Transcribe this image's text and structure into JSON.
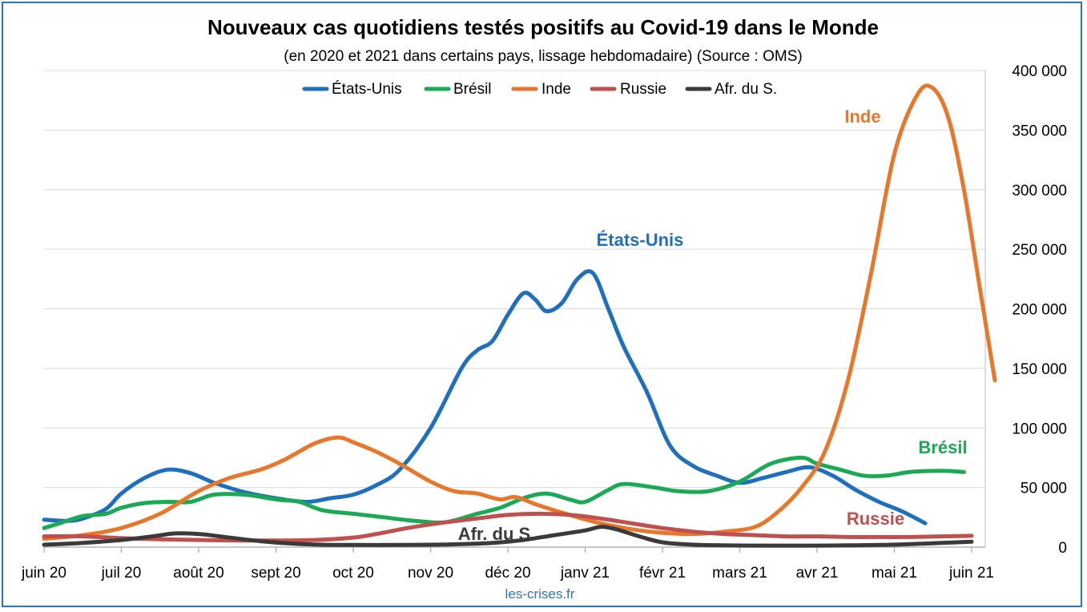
{
  "chart_data": {
    "type": "line",
    "title": "Nouveaux cas quotidiens testés positifs au Covid-19 dans le Monde",
    "subtitle": "(en 2020 et 2021 dans certains pays, lissage hebdomadaire) (Source : OMS)",
    "source_note": "les-crises.fr",
    "x_tick_labels": [
      "juin 20",
      "juil 20",
      "août 20",
      "sept 20",
      "oct 20",
      "nov 20",
      "déc 20",
      "janv 21",
      "févr 21",
      "mars 21",
      "avr 21",
      "mai 21",
      "juin 21"
    ],
    "y_tick_labels": [
      "0",
      "50 000",
      "100 000",
      "150 000",
      "200 000",
      "250 000",
      "300 000",
      "350 000",
      "400 000"
    ],
    "ylim": [
      0,
      400000
    ],
    "y_axis_side": "right",
    "grid": true,
    "legend_position": "top",
    "series": [
      {
        "name": "États-Unis",
        "label": "États-Unis",
        "color": "#1f6fbf",
        "points": [
          [
            0,
            23000
          ],
          [
            0.3,
            22000
          ],
          [
            0.5,
            24000
          ],
          [
            0.8,
            32000
          ],
          [
            1.0,
            45000
          ],
          [
            1.3,
            58000
          ],
          [
            1.6,
            65000
          ],
          [
            1.9,
            62000
          ],
          [
            2.2,
            54000
          ],
          [
            2.6,
            46000
          ],
          [
            3.0,
            41000
          ],
          [
            3.4,
            38000
          ],
          [
            3.7,
            41000
          ],
          [
            4.0,
            44000
          ],
          [
            4.3,
            52000
          ],
          [
            4.6,
            65000
          ],
          [
            5.0,
            100000
          ],
          [
            5.4,
            150000
          ],
          [
            5.6,
            165000
          ],
          [
            5.8,
            173000
          ],
          [
            6.0,
            195000
          ],
          [
            6.2,
            213000
          ],
          [
            6.35,
            208000
          ],
          [
            6.5,
            198000
          ],
          [
            6.7,
            205000
          ],
          [
            6.9,
            225000
          ],
          [
            7.1,
            230000
          ],
          [
            7.3,
            200000
          ],
          [
            7.5,
            168000
          ],
          [
            7.8,
            130000
          ],
          [
            8.1,
            85000
          ],
          [
            8.4,
            68000
          ],
          [
            8.7,
            60000
          ],
          [
            9.0,
            54000
          ],
          [
            9.3,
            58000
          ],
          [
            9.6,
            63000
          ],
          [
            9.9,
            67000
          ],
          [
            10.2,
            60000
          ],
          [
            10.5,
            48000
          ],
          [
            10.8,
            38000
          ],
          [
            11.1,
            30000
          ],
          [
            11.4,
            20000
          ]
        ]
      },
      {
        "name": "Brésil",
        "label": "Brésil",
        "color": "#1aa955",
        "points": [
          [
            0,
            16000
          ],
          [
            0.2,
            20000
          ],
          [
            0.5,
            26000
          ],
          [
            0.8,
            28000
          ],
          [
            1.0,
            33000
          ],
          [
            1.3,
            37000
          ],
          [
            1.6,
            38000
          ],
          [
            1.9,
            38000
          ],
          [
            2.2,
            44000
          ],
          [
            2.6,
            44000
          ],
          [
            3.0,
            40000
          ],
          [
            3.3,
            38000
          ],
          [
            3.6,
            31000
          ],
          [
            4.0,
            28000
          ],
          [
            4.4,
            25000
          ],
          [
            4.8,
            22000
          ],
          [
            5.2,
            21000
          ],
          [
            5.6,
            28000
          ],
          [
            5.9,
            33000
          ],
          [
            6.2,
            41000
          ],
          [
            6.5,
            45000
          ],
          [
            6.8,
            40000
          ],
          [
            7.0,
            38000
          ],
          [
            7.3,
            48000
          ],
          [
            7.5,
            53000
          ],
          [
            7.9,
            50000
          ],
          [
            8.2,
            47000
          ],
          [
            8.6,
            47000
          ],
          [
            9.0,
            55000
          ],
          [
            9.4,
            70000
          ],
          [
            9.8,
            75000
          ],
          [
            10.0,
            70000
          ],
          [
            10.3,
            65000
          ],
          [
            10.6,
            60000
          ],
          [
            10.9,
            60000
          ],
          [
            11.2,
            63000
          ],
          [
            11.6,
            64000
          ],
          [
            11.9,
            63000
          ]
        ]
      },
      {
        "name": "Inde",
        "label": "Inde",
        "color": "#e8762b",
        "points": [
          [
            0,
            7000
          ],
          [
            0.5,
            10000
          ],
          [
            1.0,
            16000
          ],
          [
            1.5,
            28000
          ],
          [
            2.0,
            47000
          ],
          [
            2.4,
            58000
          ],
          [
            2.8,
            65000
          ],
          [
            3.1,
            73000
          ],
          [
            3.5,
            87000
          ],
          [
            3.8,
            92000
          ],
          [
            4.0,
            88000
          ],
          [
            4.3,
            80000
          ],
          [
            4.6,
            70000
          ],
          [
            5.0,
            55000
          ],
          [
            5.3,
            47000
          ],
          [
            5.6,
            45000
          ],
          [
            5.9,
            40000
          ],
          [
            6.1,
            42000
          ],
          [
            6.4,
            35000
          ],
          [
            6.8,
            27000
          ],
          [
            7.2,
            20000
          ],
          [
            7.6,
            15000
          ],
          [
            8.0,
            12000
          ],
          [
            8.4,
            11000
          ],
          [
            8.8,
            13000
          ],
          [
            9.2,
            17000
          ],
          [
            9.5,
            30000
          ],
          [
            9.8,
            50000
          ],
          [
            10.1,
            80000
          ],
          [
            10.4,
            140000
          ],
          [
            10.7,
            230000
          ],
          [
            11.0,
            330000
          ],
          [
            11.3,
            380000
          ],
          [
            11.5,
            385000
          ],
          [
            11.7,
            360000
          ],
          [
            11.9,
            300000
          ],
          [
            12.1,
            220000
          ],
          [
            12.3,
            140000
          ]
        ]
      },
      {
        "name": "Russie",
        "label": "Russie",
        "color": "#c0504d",
        "points": [
          [
            0,
            9000
          ],
          [
            0.5,
            9000
          ],
          [
            1.0,
            7500
          ],
          [
            1.5,
            6500
          ],
          [
            2.0,
            6000
          ],
          [
            2.5,
            5500
          ],
          [
            3.0,
            5500
          ],
          [
            3.5,
            6000
          ],
          [
            4.0,
            8000
          ],
          [
            4.3,
            11000
          ],
          [
            4.7,
            16000
          ],
          [
            5.1,
            20000
          ],
          [
            5.6,
            24000
          ],
          [
            6.0,
            27000
          ],
          [
            6.4,
            28000
          ],
          [
            6.8,
            27000
          ],
          [
            7.2,
            24000
          ],
          [
            7.6,
            20000
          ],
          [
            8.0,
            16000
          ],
          [
            8.4,
            13000
          ],
          [
            8.8,
            11000
          ],
          [
            9.2,
            10000
          ],
          [
            9.6,
            9000
          ],
          [
            10.0,
            9000
          ],
          [
            10.4,
            8500
          ],
          [
            10.8,
            8500
          ],
          [
            11.2,
            8500
          ],
          [
            11.6,
            9000
          ],
          [
            12.0,
            9500
          ]
        ]
      },
      {
        "name": "Afr. du S.",
        "label": "Afr. du S.",
        "color": "#3a3a3a",
        "points": [
          [
            0,
            2000
          ],
          [
            0.5,
            3500
          ],
          [
            1.0,
            6000
          ],
          [
            1.4,
            9000
          ],
          [
            1.7,
            11500
          ],
          [
            2.0,
            11000
          ],
          [
            2.4,
            8000
          ],
          [
            2.8,
            5000
          ],
          [
            3.2,
            3000
          ],
          [
            3.6,
            2000
          ],
          [
            4.0,
            1800
          ],
          [
            4.5,
            1800
          ],
          [
            5.0,
            2000
          ],
          [
            5.4,
            2500
          ],
          [
            5.8,
            3500
          ],
          [
            6.2,
            6000
          ],
          [
            6.6,
            10000
          ],
          [
            7.0,
            14000
          ],
          [
            7.2,
            17000
          ],
          [
            7.4,
            15000
          ],
          [
            7.7,
            9000
          ],
          [
            8.0,
            4000
          ],
          [
            8.4,
            2000
          ],
          [
            8.8,
            1500
          ],
          [
            9.2,
            1300
          ],
          [
            9.6,
            1300
          ],
          [
            10.0,
            1300
          ],
          [
            10.4,
            1500
          ],
          [
            10.8,
            1800
          ],
          [
            11.2,
            2500
          ],
          [
            11.6,
            3500
          ],
          [
            12.0,
            4500
          ]
        ]
      }
    ]
  }
}
